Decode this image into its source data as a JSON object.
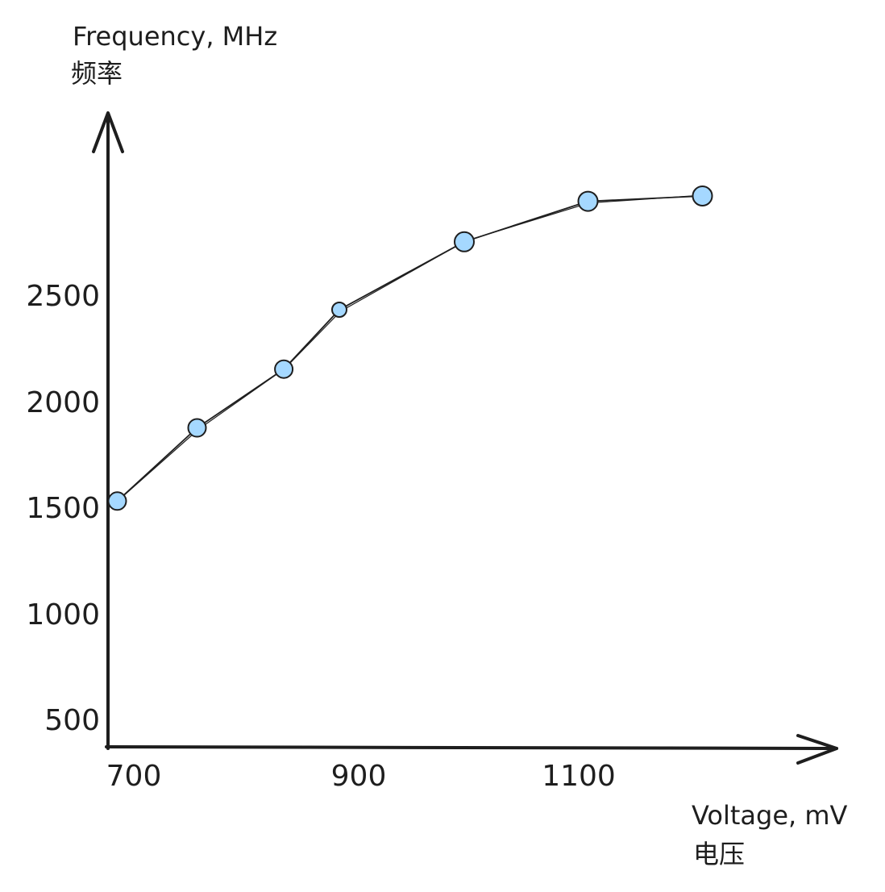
{
  "chart_data": {
    "type": "line",
    "title": "",
    "xlabel": "Voltage, mV",
    "xlabel_cn": "电压",
    "ylabel": "Frequency, MHz",
    "ylabel_cn": "频率",
    "x_ticks": [
      "700",
      "900",
      "1100"
    ],
    "y_ticks": [
      "500",
      "1000",
      "1500",
      "2000",
      "2500"
    ],
    "xlim": [
      700,
      1330
    ],
    "ylim": [
      325,
      3275
    ],
    "series": [
      {
        "name": "Frequency",
        "x": [
          708,
          777,
          852,
          900,
          1008,
          1115,
          1214
        ],
        "y": [
          1491,
          1836,
          2113,
          2393,
          2713,
          2904,
          2929
        ]
      }
    ],
    "grid": false,
    "legend": "none"
  },
  "colors": {
    "ink": "#1e1e1e",
    "point_fill": "#a5d8ff"
  }
}
